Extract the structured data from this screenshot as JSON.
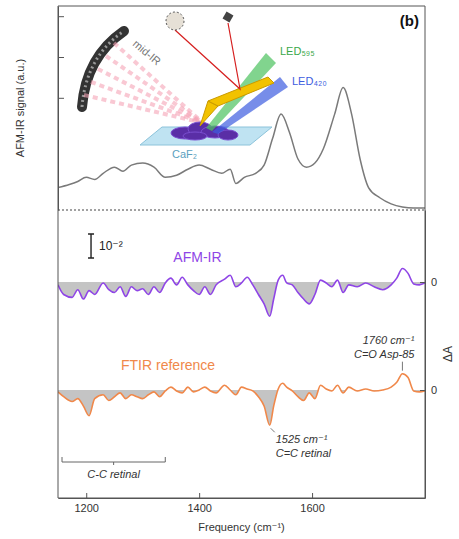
{
  "chart_data": [
    {
      "type": "line",
      "title": "(b)",
      "y_label": "AFM-IR signal (a.u.)",
      "color": "#7a7a7a",
      "x": [
        1150,
        1170,
        1185,
        1200,
        1215,
        1230,
        1250,
        1265,
        1280,
        1300,
        1320,
        1340,
        1360,
        1380,
        1400,
        1420,
        1440,
        1455,
        1465,
        1480,
        1500,
        1515,
        1530,
        1545,
        1560,
        1575,
        1590,
        1605,
        1620,
        1640,
        1655,
        1670,
        1685,
        1700,
        1720,
        1740,
        1760,
        1780,
        1800
      ],
      "values": [
        0.11,
        0.125,
        0.14,
        0.16,
        0.15,
        0.18,
        0.21,
        0.19,
        0.22,
        0.23,
        0.21,
        0.16,
        0.17,
        0.2,
        0.22,
        0.2,
        0.18,
        0.2,
        0.13,
        0.16,
        0.18,
        0.22,
        0.35,
        0.47,
        0.38,
        0.25,
        0.21,
        0.23,
        0.3,
        0.47,
        0.6,
        0.47,
        0.25,
        0.11,
        0.06,
        0.03,
        0.015,
        0.01,
        0.01
      ],
      "xlim": [
        1150,
        1800
      ],
      "ylim": [
        0,
        1
      ],
      "yticks": [
        0.55,
        0.75,
        0.95
      ],
      "tick_labels": false,
      "inset_labels": [
        "mid-IR",
        "LED₅₉₅",
        "LED₄₂₀",
        "CaF₂"
      ]
    },
    {
      "type": "line",
      "x_label": "Frequency (cm⁻¹)",
      "y_label": "ΔA",
      "x": [
        1150,
        1160,
        1175,
        1185,
        1195,
        1205,
        1215,
        1230,
        1240,
        1250,
        1260,
        1270,
        1280,
        1290,
        1300,
        1310,
        1320,
        1330,
        1340,
        1350,
        1360,
        1370,
        1380,
        1390,
        1400,
        1410,
        1420,
        1430,
        1445,
        1455,
        1465,
        1475,
        1485,
        1495,
        1505,
        1515,
        1525,
        1532,
        1540,
        1548,
        1555,
        1565,
        1575,
        1585,
        1595,
        1605,
        1615,
        1625,
        1635,
        1645,
        1655,
        1665,
        1680,
        1695,
        1710,
        1725,
        1740,
        1750,
        1760,
        1770,
        1780,
        1790,
        1800
      ],
      "series": [
        {
          "name": "AFM-IR",
          "color": "#8f45e6",
          "baseline": 0.09,
          "values": [
            0.0888,
            0.0848,
            0.0836,
            0.0868,
            0.0829,
            0.0864,
            0.0848,
            0.0896,
            0.0868,
            0.0856,
            0.088,
            0.084,
            0.088,
            0.0864,
            0.0872,
            0.0848,
            0.088,
            0.0856,
            0.0896,
            0.0916,
            0.0888,
            0.092,
            0.0888,
            0.0864,
            0.0848,
            0.088,
            0.0848,
            0.0888,
            0.0912,
            0.0928,
            0.088,
            0.0896,
            0.092,
            0.0888,
            0.0848,
            0.0809,
            0.0757,
            0.0829,
            0.0908,
            0.0928,
            0.0896,
            0.0888,
            0.0856,
            0.0829,
            0.0809,
            0.0848,
            0.0908,
            0.0896,
            0.088,
            0.0908,
            0.0856,
            0.0888,
            0.088,
            0.0896,
            0.088,
            0.0868,
            0.0888,
            0.0916,
            0.0956,
            0.0936,
            0.0892,
            0.0888,
            0.0896
          ]
        },
        {
          "name": "FTIR reference",
          "color": "#f0884a",
          "baseline": 0.045,
          "values": [
            0.0442,
            0.0422,
            0.0402,
            0.0414,
            0.0383,
            0.0343,
            0.0414,
            0.043,
            0.0406,
            0.0422,
            0.0438,
            0.0414,
            0.043,
            0.0422,
            0.0414,
            0.043,
            0.0442,
            0.0422,
            0.0446,
            0.0462,
            0.0446,
            0.0438,
            0.0462,
            0.0442,
            0.045,
            0.0462,
            0.0446,
            0.0438,
            0.047,
            0.045,
            0.043,
            0.0462,
            0.0454,
            0.0446,
            0.0422,
            0.0383,
            0.0303,
            0.0383,
            0.0454,
            0.0478,
            0.0462,
            0.0446,
            0.0422,
            0.0406,
            0.0438,
            0.0414,
            0.047,
            0.0454,
            0.0446,
            0.047,
            0.0438,
            0.0462,
            0.0446,
            0.0454,
            0.0446,
            0.045,
            0.0462,
            0.0482,
            0.0518,
            0.0502,
            0.0446,
            0.0442,
            0.0446
          ],
          "annotations": [
            {
              "x": 1760,
              "text": [
                "1760 cm⁻¹",
                "C=O Asp-85"
              ]
            },
            {
              "x": 1525,
              "text": [
                "1525 cm⁻¹",
                "C=C retinal"
              ]
            }
          ]
        }
      ],
      "xlim": [
        1150,
        1800
      ],
      "xticks": [
        1200,
        1400,
        1600
      ],
      "ylim": [
        0,
        0.12
      ],
      "yticks": [
        {
          "value": 0.09,
          "label": "0"
        },
        {
          "value": 0.045,
          "label": "0"
        }
      ],
      "scale_bar": {
        "label": "10⁻²",
        "value": 0.01
      },
      "annotations": [
        {
          "x_range": [
            1150,
            1340
          ],
          "text": [
            "C-C retinal"
          ]
        }
      ]
    }
  ]
}
